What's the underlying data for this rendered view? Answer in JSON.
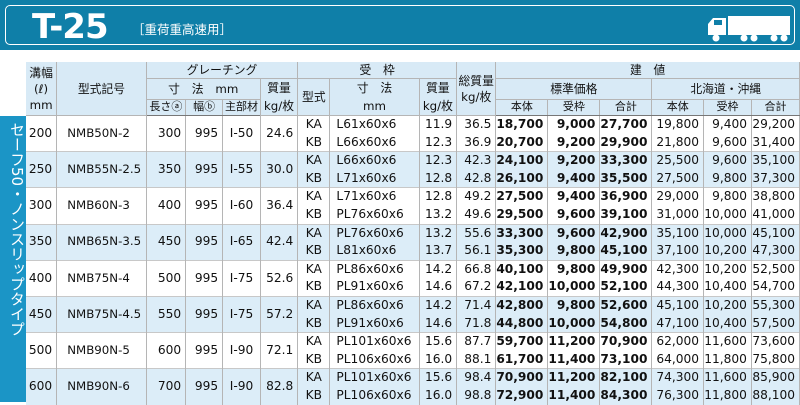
{
  "header": {
    "title": "T-25",
    "subtitle": "［重荷重高速用］",
    "icon": "truck-icon",
    "color": "#0f7fa8"
  },
  "side_label": "セーフ50・ノンスリップタイプ",
  "columns": {
    "groove_width": "溝幅\n(ℓ)\nmm",
    "model": "型式記号",
    "grating": "グレーチング",
    "dimensions": "寸　法　mm",
    "length": "長さⓐ",
    "width": "幅ⓑ",
    "main_bar": "主部材",
    "grating_mass": "質量\nkg/枚",
    "frame": "受　枠",
    "frame_type": "型式",
    "frame_dimensions": "寸　法\nmm",
    "frame_mass": "質量\nkg/枚",
    "total_mass": "総質量\nkg/枚",
    "price": "建　値",
    "standard_price": "標準価格",
    "hokkaido_okinawa": "北海道・沖縄",
    "body": "本体",
    "frame_price": "受枠",
    "total": "合計"
  },
  "rows": [
    {
      "groove": "200",
      "model": "NMB50N-2",
      "length": "300",
      "width": "995",
      "main": "I-50",
      "gmass": "24.6",
      "sub": [
        {
          "type": "KA",
          "dim": "L61x60x6",
          "fmass": "11.9",
          "tmass": "36.5",
          "sb": "18,700",
          "sf": "9,000",
          "st": "27,700",
          "hb": "19,800",
          "hf": "9,400",
          "ht": "29,200"
        },
        {
          "type": "KB",
          "dim": "L66x60x6",
          "fmass": "12.3",
          "tmass": "36.9",
          "sb": "20,700",
          "sf": "9,200",
          "st": "29,900",
          "hb": "21,800",
          "hf": "9,600",
          "ht": "31,400"
        }
      ]
    },
    {
      "groove": "250",
      "model": "NMB55N-2.5",
      "length": "350",
      "width": "995",
      "main": "I-55",
      "gmass": "30.0",
      "sub": [
        {
          "type": "KA",
          "dim": "L66x60x6",
          "fmass": "12.3",
          "tmass": "42.3",
          "sb": "24,100",
          "sf": "9,200",
          "st": "33,300",
          "hb": "25,500",
          "hf": "9,600",
          "ht": "35,100"
        },
        {
          "type": "KB",
          "dim": "L71x60x6",
          "fmass": "12.8",
          "tmass": "42.8",
          "sb": "26,100",
          "sf": "9,400",
          "st": "35,500",
          "hb": "27,500",
          "hf": "9,800",
          "ht": "37,300"
        }
      ]
    },
    {
      "groove": "300",
      "model": "NMB60N-3",
      "length": "400",
      "width": "995",
      "main": "I-60",
      "gmass": "36.4",
      "sub": [
        {
          "type": "KA",
          "dim": "L71x60x6",
          "fmass": "12.8",
          "tmass": "49.2",
          "sb": "27,500",
          "sf": "9,400",
          "st": "36,900",
          "hb": "29,000",
          "hf": "9,800",
          "ht": "38,800"
        },
        {
          "type": "KB",
          "dim": "PL76x60x6",
          "fmass": "13.2",
          "tmass": "49.6",
          "sb": "29,500",
          "sf": "9,600",
          "st": "39,100",
          "hb": "31,000",
          "hf": "10,000",
          "ht": "41,000"
        }
      ]
    },
    {
      "groove": "350",
      "model": "NMB65N-3.5",
      "length": "450",
      "width": "995",
      "main": "I-65",
      "gmass": "42.4",
      "sub": [
        {
          "type": "KA",
          "dim": "PL76x60x6",
          "fmass": "13.2",
          "tmass": "55.6",
          "sb": "33,300",
          "sf": "9,600",
          "st": "42,900",
          "hb": "35,100",
          "hf": "10,000",
          "ht": "45,100"
        },
        {
          "type": "KB",
          "dim": "L81x60x6",
          "fmass": "13.7",
          "tmass": "56.1",
          "sb": "35,300",
          "sf": "9,800",
          "st": "45,100",
          "hb": "37,100",
          "hf": "10,200",
          "ht": "47,300"
        }
      ]
    },
    {
      "groove": "400",
      "model": "NMB75N-4",
      "length": "500",
      "width": "995",
      "main": "I-75",
      "gmass": "52.6",
      "sub": [
        {
          "type": "KA",
          "dim": "PL86x60x6",
          "fmass": "14.2",
          "tmass": "66.8",
          "sb": "40,100",
          "sf": "9,800",
          "st": "49,900",
          "hb": "42,300",
          "hf": "10,200",
          "ht": "52,500"
        },
        {
          "type": "KB",
          "dim": "PL91x60x6",
          "fmass": "14.6",
          "tmass": "67.2",
          "sb": "42,100",
          "sf": "10,000",
          "st": "52,100",
          "hb": "44,300",
          "hf": "10,400",
          "ht": "54,700"
        }
      ]
    },
    {
      "groove": "450",
      "model": "NMB75N-4.5",
      "length": "550",
      "width": "995",
      "main": "I-75",
      "gmass": "57.2",
      "sub": [
        {
          "type": "KA",
          "dim": "PL86x60x6",
          "fmass": "14.2",
          "tmass": "71.4",
          "sb": "42,800",
          "sf": "9,800",
          "st": "52,600",
          "hb": "45,100",
          "hf": "10,200",
          "ht": "55,300"
        },
        {
          "type": "KB",
          "dim": "PL91x60x6",
          "fmass": "14.6",
          "tmass": "71.8",
          "sb": "44,800",
          "sf": "10,000",
          "st": "54,800",
          "hb": "47,100",
          "hf": "10,400",
          "ht": "57,500"
        }
      ]
    },
    {
      "groove": "500",
      "model": "NMB90N-5",
      "length": "600",
      "width": "995",
      "main": "I-90",
      "gmass": "72.1",
      "sub": [
        {
          "type": "KA",
          "dim": "PL101x60x6",
          "fmass": "15.6",
          "tmass": "87.7",
          "sb": "59,700",
          "sf": "11,200",
          "st": "70,900",
          "hb": "62,000",
          "hf": "11,600",
          "ht": "73,600"
        },
        {
          "type": "KB",
          "dim": "PL106x60x6",
          "fmass": "16.0",
          "tmass": "88.1",
          "sb": "61,700",
          "sf": "11,400",
          "st": "73,100",
          "hb": "64,000",
          "hf": "11,800",
          "ht": "75,800"
        }
      ]
    },
    {
      "groove": "600",
      "model": "NMB90N-6",
      "length": "700",
      "width": "995",
      "main": "I-90",
      "gmass": "82.8",
      "sub": [
        {
          "type": "KA",
          "dim": "PL101x60x6",
          "fmass": "15.6",
          "tmass": "98.4",
          "sb": "70,900",
          "sf": "11,200",
          "st": "82,100",
          "hb": "74,300",
          "hf": "11,600",
          "ht": "85,900"
        },
        {
          "type": "KB",
          "dim": "PL106x60x6",
          "fmass": "16.0",
          "tmass": "98.8",
          "sb": "72,900",
          "sf": "11,400",
          "st": "84,300",
          "hb": "76,300",
          "hf": "11,800",
          "ht": "88,100"
        }
      ]
    }
  ]
}
